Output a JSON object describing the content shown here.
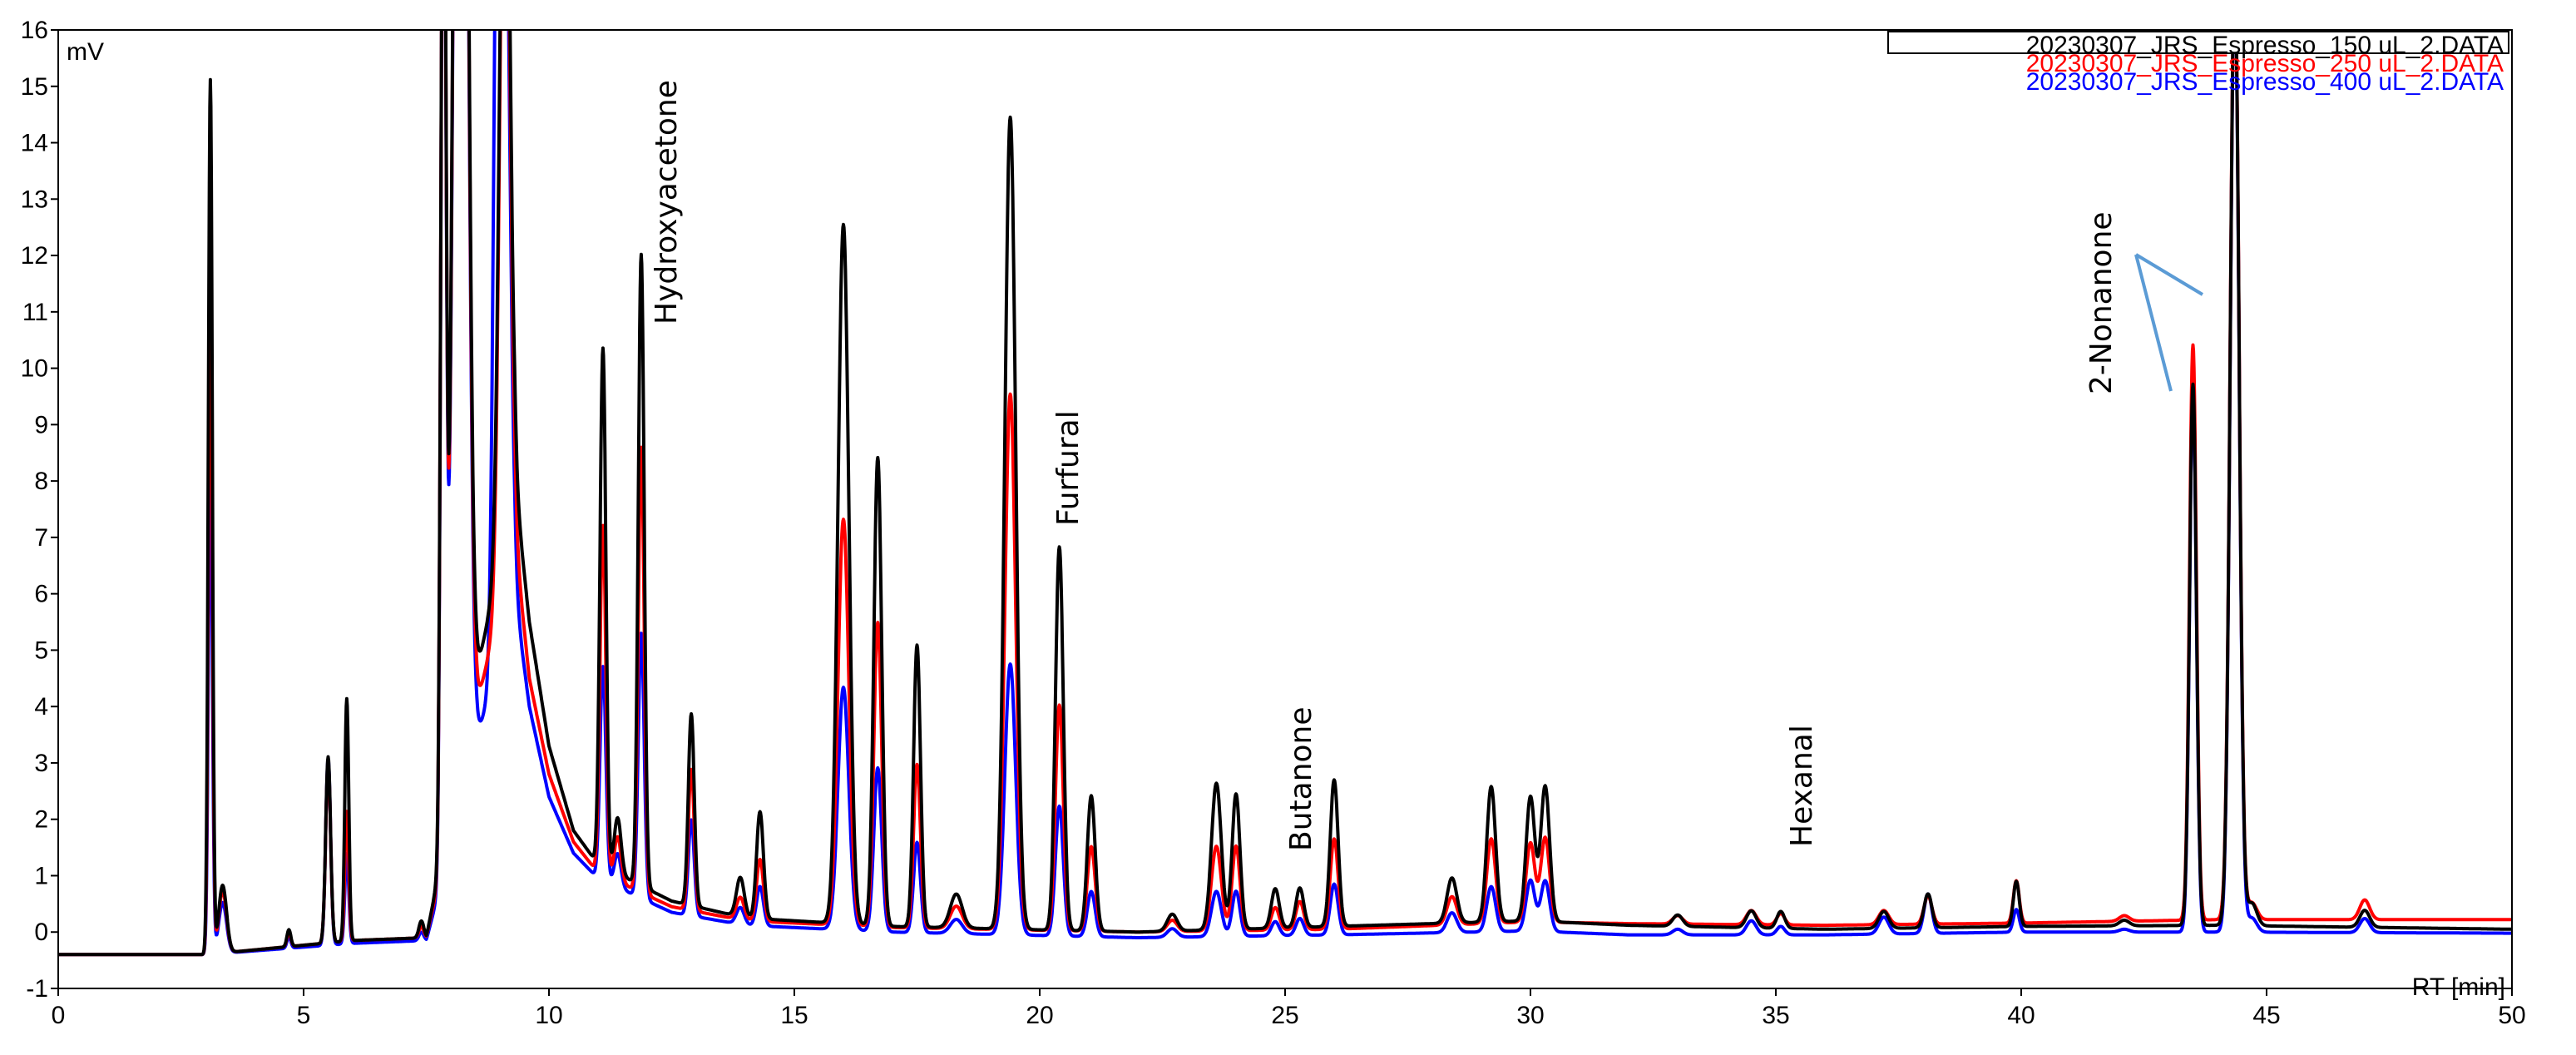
{
  "chart_data": {
    "type": "line",
    "xlabel": "RT [min]",
    "ylabel": "mV",
    "xlim": [
      0,
      50
    ],
    "ylim": [
      -1,
      16
    ],
    "xticks": [
      0,
      5,
      10,
      15,
      20,
      25,
      30,
      35,
      40,
      45,
      50
    ],
    "yticks": [
      -1,
      0,
      1,
      2,
      3,
      4,
      5,
      6,
      7,
      8,
      9,
      10,
      11,
      12,
      13,
      14,
      15,
      16
    ],
    "grid": false,
    "legend_position": "top-right",
    "annotations": [
      {
        "text": "Hydroxyacetone",
        "x": 12.5,
        "y": 14.5
      },
      {
        "text": "Furfural",
        "x": 20.7,
        "y": 8.9
      },
      {
        "text": "Butanone",
        "x": 25.4,
        "y": 3.5
      },
      {
        "text": "Hexanal",
        "x": 35.2,
        "y": 2.5
      },
      {
        "text": "2-Nonanone",
        "x": 42.0,
        "y": 10.6
      }
    ],
    "series": [
      {
        "name": "20230307_JRS_Espresso_150 uL_2.DATA",
        "color": "#000000",
        "baseline": [
          [
            0,
            -0.4
          ],
          [
            3.0,
            -0.4
          ],
          [
            6,
            -0.15
          ],
          [
            7.5,
            -0.1
          ],
          [
            9.3,
            8.0
          ],
          [
            9.6,
            5.5
          ],
          [
            10,
            3.3
          ],
          [
            10.5,
            1.8
          ],
          [
            11.0,
            1.2
          ],
          [
            12.5,
            0.55
          ],
          [
            14,
            0.25
          ],
          [
            17,
            0.1
          ],
          [
            22,
            0.0
          ],
          [
            26,
            0.1
          ],
          [
            30,
            0.2
          ],
          [
            32,
            0.12
          ],
          [
            36,
            0.05
          ],
          [
            40,
            0.1
          ],
          [
            44,
            0.12
          ],
          [
            50,
            0.05
          ]
        ],
        "peaks": [
          [
            3.1,
            15.5,
            0.04
          ],
          [
            3.35,
            1.2,
            0.08
          ],
          [
            4.7,
            0.3,
            0.04
          ],
          [
            5.5,
            3.3,
            0.05
          ],
          [
            5.88,
            4.3,
            0.04
          ],
          [
            7.4,
            0.3,
            0.05
          ],
          [
            7.85,
            20,
            0.05
          ],
          [
            8.2,
            35,
            0.12
          ],
          [
            9.1,
            15,
            0.1
          ],
          [
            11.1,
            9.2,
            0.06
          ],
          [
            11.4,
            1.0,
            0.07
          ],
          [
            11.88,
            11.2,
            0.06
          ],
          [
            12.9,
            3.4,
            0.06
          ],
          [
            13.9,
            0.7,
            0.08
          ],
          [
            14.3,
            1.9,
            0.07
          ],
          [
            16.0,
            12.4,
            0.11
          ],
          [
            16.7,
            8.3,
            0.08
          ],
          [
            17.5,
            5.0,
            0.07
          ],
          [
            18.3,
            0.6,
            0.12
          ],
          [
            19.4,
            14.4,
            0.11
          ],
          [
            20.4,
            6.8,
            0.08
          ],
          [
            21.05,
            2.4,
            0.08
          ],
          [
            22.7,
            0.3,
            0.1
          ],
          [
            23.6,
            2.6,
            0.1
          ],
          [
            24.0,
            2.4,
            0.08
          ],
          [
            24.8,
            0.7,
            0.08
          ],
          [
            25.3,
            0.7,
            0.08
          ],
          [
            26.0,
            2.6,
            0.08
          ],
          [
            28.4,
            0.8,
            0.1
          ],
          [
            29.2,
            2.4,
            0.09
          ],
          [
            30.0,
            2.2,
            0.09
          ],
          [
            30.3,
            2.4,
            0.09
          ],
          [
            33.0,
            0.2,
            0.1
          ],
          [
            34.5,
            0.3,
            0.1
          ],
          [
            35.1,
            0.3,
            0.08
          ],
          [
            37.2,
            0.3,
            0.1
          ],
          [
            38.1,
            0.6,
            0.08
          ],
          [
            39.9,
            0.8,
            0.06
          ],
          [
            42.1,
            0.1,
            0.1
          ],
          [
            43.5,
            9.6,
            0.07
          ],
          [
            44.35,
            17,
            0.09
          ],
          [
            44.7,
            0.4,
            0.1
          ],
          [
            47.0,
            0.3,
            0.1
          ]
        ]
      },
      {
        "name": "20230307_JRS_Espresso_250 uL_2.DATA",
        "color": "#ff0000",
        "baseline": [
          [
            0,
            -0.4
          ],
          [
            3.0,
            -0.4
          ],
          [
            6,
            -0.15
          ],
          [
            7.5,
            -0.1
          ],
          [
            9.3,
            7.0
          ],
          [
            9.6,
            4.5
          ],
          [
            10,
            2.8
          ],
          [
            10.5,
            1.6
          ],
          [
            11.0,
            1.05
          ],
          [
            12.5,
            0.45
          ],
          [
            14,
            0.2
          ],
          [
            17,
            0.08
          ],
          [
            22,
            0.0
          ],
          [
            26,
            0.05
          ],
          [
            30,
            0.18
          ],
          [
            32,
            0.15
          ],
          [
            36,
            0.12
          ],
          [
            40,
            0.16
          ],
          [
            44,
            0.22
          ],
          [
            50,
            0.22
          ]
        ],
        "peaks": [
          [
            3.1,
            12.0,
            0.04
          ],
          [
            3.35,
            1.1,
            0.08
          ],
          [
            4.7,
            0.25,
            0.04
          ],
          [
            5.5,
            3.2,
            0.05
          ],
          [
            5.88,
            2.3,
            0.04
          ],
          [
            7.4,
            0.2,
            0.05
          ],
          [
            7.85,
            20,
            0.05
          ],
          [
            8.2,
            35,
            0.12
          ],
          [
            9.1,
            15,
            0.1
          ],
          [
            11.1,
            6.2,
            0.06
          ],
          [
            11.4,
            0.8,
            0.07
          ],
          [
            11.88,
            7.9,
            0.06
          ],
          [
            12.9,
            2.5,
            0.06
          ],
          [
            13.9,
            0.4,
            0.08
          ],
          [
            14.3,
            1.1,
            0.07
          ],
          [
            16.0,
            7.2,
            0.11
          ],
          [
            16.7,
            5.4,
            0.08
          ],
          [
            17.5,
            2.9,
            0.07
          ],
          [
            18.3,
            0.4,
            0.12
          ],
          [
            19.4,
            9.5,
            0.11
          ],
          [
            20.4,
            4.0,
            0.08
          ],
          [
            21.05,
            1.5,
            0.08
          ],
          [
            22.7,
            0.2,
            0.1
          ],
          [
            23.6,
            1.5,
            0.1
          ],
          [
            24.0,
            1.5,
            0.08
          ],
          [
            24.8,
            0.4,
            0.08
          ],
          [
            25.3,
            0.5,
            0.08
          ],
          [
            26.0,
            1.6,
            0.08
          ],
          [
            28.4,
            0.5,
            0.1
          ],
          [
            29.2,
            1.5,
            0.09
          ],
          [
            30.0,
            1.4,
            0.09
          ],
          [
            30.3,
            1.5,
            0.09
          ],
          [
            33.0,
            0.15,
            0.1
          ],
          [
            34.5,
            0.25,
            0.1
          ],
          [
            35.1,
            0.2,
            0.08
          ],
          [
            37.2,
            0.25,
            0.1
          ],
          [
            38.1,
            0.5,
            0.08
          ],
          [
            39.9,
            0.75,
            0.06
          ],
          [
            42.1,
            0.1,
            0.1
          ],
          [
            43.5,
            10.2,
            0.07
          ],
          [
            44.35,
            17,
            0.09
          ],
          [
            44.7,
            0.3,
            0.1
          ],
          [
            47.0,
            0.35,
            0.1
          ]
        ]
      },
      {
        "name": "20230307_JRS_Espresso_400 uL_2.DATA",
        "color": "#0000ff",
        "baseline": [
          [
            0,
            -0.4
          ],
          [
            3.0,
            -0.4
          ],
          [
            6,
            -0.2
          ],
          [
            7.5,
            -0.15
          ],
          [
            9.3,
            6.0
          ],
          [
            9.6,
            4.0
          ],
          [
            10,
            2.4
          ],
          [
            10.5,
            1.4
          ],
          [
            11.0,
            0.95
          ],
          [
            12.5,
            0.35
          ],
          [
            14,
            0.12
          ],
          [
            17,
            0.0
          ],
          [
            22,
            -0.1
          ],
          [
            26,
            -0.05
          ],
          [
            30,
            0.02
          ],
          [
            32,
            -0.05
          ],
          [
            36,
            -0.05
          ],
          [
            40,
            0.0
          ],
          [
            44,
            0.0
          ],
          [
            50,
            -0.02
          ]
        ],
        "peaks": [
          [
            3.1,
            8.7,
            0.04
          ],
          [
            3.35,
            0.9,
            0.08
          ],
          [
            4.7,
            0.2,
            0.04
          ],
          [
            5.5,
            3.3,
            0.05
          ],
          [
            5.88,
            1.6,
            0.04
          ],
          [
            7.4,
            0.15,
            0.05
          ],
          [
            7.85,
            20,
            0.05
          ],
          [
            8.2,
            35,
            0.12
          ],
          [
            8.95,
            12.5,
            0.08
          ],
          [
            9.1,
            14,
            0.1
          ],
          [
            11.1,
            3.8,
            0.06
          ],
          [
            11.4,
            0.6,
            0.07
          ],
          [
            11.88,
            4.7,
            0.06
          ],
          [
            12.9,
            1.7,
            0.06
          ],
          [
            13.9,
            0.3,
            0.08
          ],
          [
            14.3,
            0.7,
            0.07
          ],
          [
            16.0,
            4.3,
            0.11
          ],
          [
            16.7,
            2.9,
            0.08
          ],
          [
            17.5,
            1.6,
            0.07
          ],
          [
            18.3,
            0.25,
            0.12
          ],
          [
            19.4,
            4.8,
            0.11
          ],
          [
            20.4,
            2.3,
            0.08
          ],
          [
            21.05,
            0.8,
            0.08
          ],
          [
            22.7,
            0.15,
            0.1
          ],
          [
            23.6,
            0.8,
            0.1
          ],
          [
            24.0,
            0.8,
            0.08
          ],
          [
            24.8,
            0.25,
            0.08
          ],
          [
            25.3,
            0.3,
            0.08
          ],
          [
            26.0,
            0.9,
            0.08
          ],
          [
            28.4,
            0.35,
            0.1
          ],
          [
            29.2,
            0.8,
            0.09
          ],
          [
            30.0,
            0.9,
            0.09
          ],
          [
            30.3,
            0.9,
            0.09
          ],
          [
            33.0,
            0.1,
            0.1
          ],
          [
            34.5,
            0.25,
            0.1
          ],
          [
            35.1,
            0.15,
            0.08
          ],
          [
            37.2,
            0.3,
            0.1
          ],
          [
            38.1,
            0.7,
            0.08
          ],
          [
            39.9,
            0.4,
            0.06
          ],
          [
            42.1,
            0.05,
            0.1
          ],
          [
            43.5,
            9.6,
            0.07
          ],
          [
            44.35,
            17,
            0.09
          ],
          [
            44.7,
            0.25,
            0.1
          ],
          [
            47.0,
            0.25,
            0.1
          ]
        ]
      }
    ]
  },
  "callout_color": "#5b9bd5"
}
